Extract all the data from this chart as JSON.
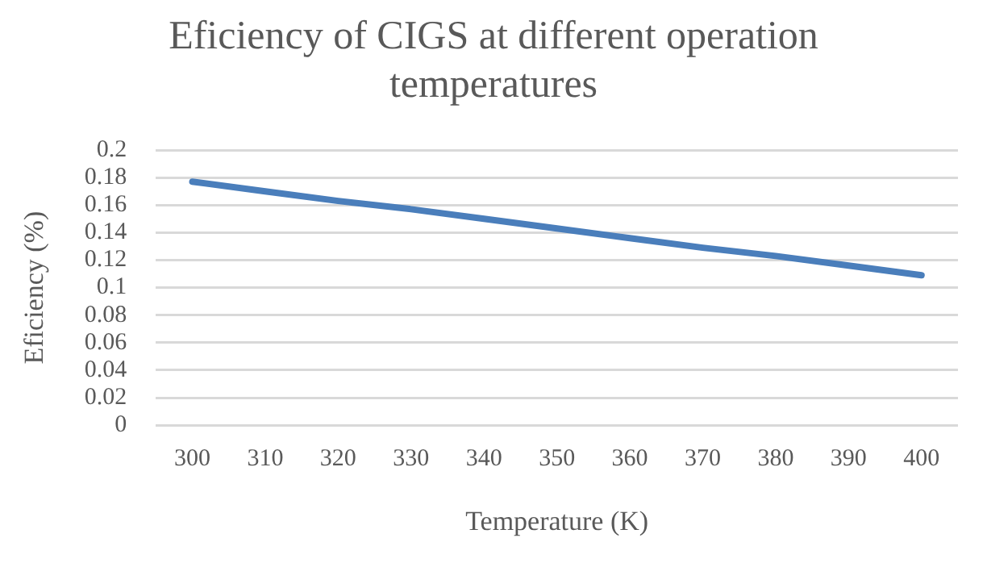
{
  "chart_data": {
    "type": "line",
    "title": "Eficiency of CIGS at different operation temperatures",
    "xlabel": "Temperature (K)",
    "ylabel": "Eficiency (%)",
    "categories": [
      "300",
      "310",
      "320",
      "330",
      "340",
      "350",
      "360",
      "370",
      "380",
      "390",
      "400"
    ],
    "series": [
      {
        "color": "#4a7ebb",
        "values": [
          0.177,
          0.17,
          0.163,
          0.157,
          0.15,
          0.143,
          0.136,
          0.129,
          0.123,
          0.116,
          0.109
        ]
      }
    ],
    "ylim": [
      0,
      0.2
    ],
    "yticks": [
      0,
      0.02,
      0.04,
      0.06,
      0.08,
      0.1,
      0.12,
      0.14,
      0.16,
      0.18,
      0.2
    ],
    "grid": "y",
    "legend": false,
    "marker": "none",
    "line_style": "solid"
  }
}
